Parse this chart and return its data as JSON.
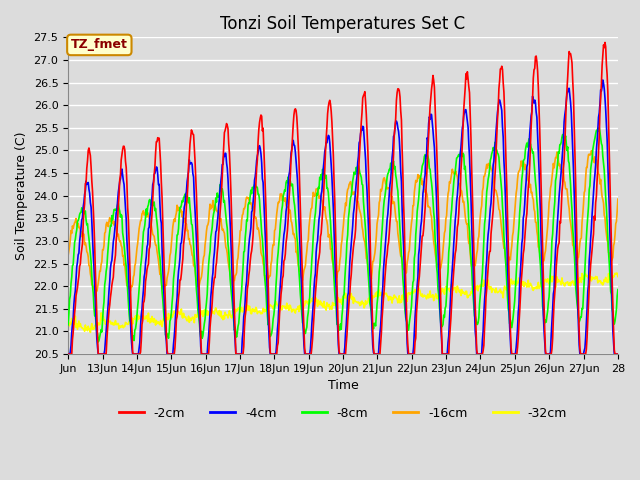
{
  "title": "Tonzi Soil Temperatures Set C",
  "xlabel": "Time",
  "ylabel": "Soil Temperature (C)",
  "ylim": [
    20.5,
    27.5
  ],
  "annotation_text": "TZ_fmet",
  "annotation_bg": "#ffffcc",
  "annotation_border": "#cc8800",
  "bg_color": "#dcdcdc",
  "plot_bg": "#dcdcdc",
  "grid_color": "white",
  "legend_labels": [
    "-2cm",
    "-4cm",
    "-8cm",
    "-16cm",
    "-32cm"
  ],
  "legend_colors": [
    "red",
    "blue",
    "lime",
    "orange",
    "yellow"
  ],
  "xtick_labels": [
    "Jun",
    "13Jun",
    "14Jun",
    "15Jun",
    "16Jun",
    "17Jun",
    "18Jun",
    "19Jun",
    "20Jun",
    "21Jun",
    "22Jun",
    "23Jun",
    "24Jun",
    "25Jun",
    "26Jun",
    "27Jun",
    "28"
  ],
  "ytick_labels": [
    20.5,
    21.0,
    21.5,
    22.0,
    22.5,
    23.0,
    23.5,
    24.0,
    24.5,
    25.0,
    25.5,
    26.0,
    26.5,
    27.0,
    27.5
  ],
  "title_fontsize": 12,
  "axis_label_fontsize": 9,
  "tick_fontsize": 8,
  "line_width": 1.2
}
